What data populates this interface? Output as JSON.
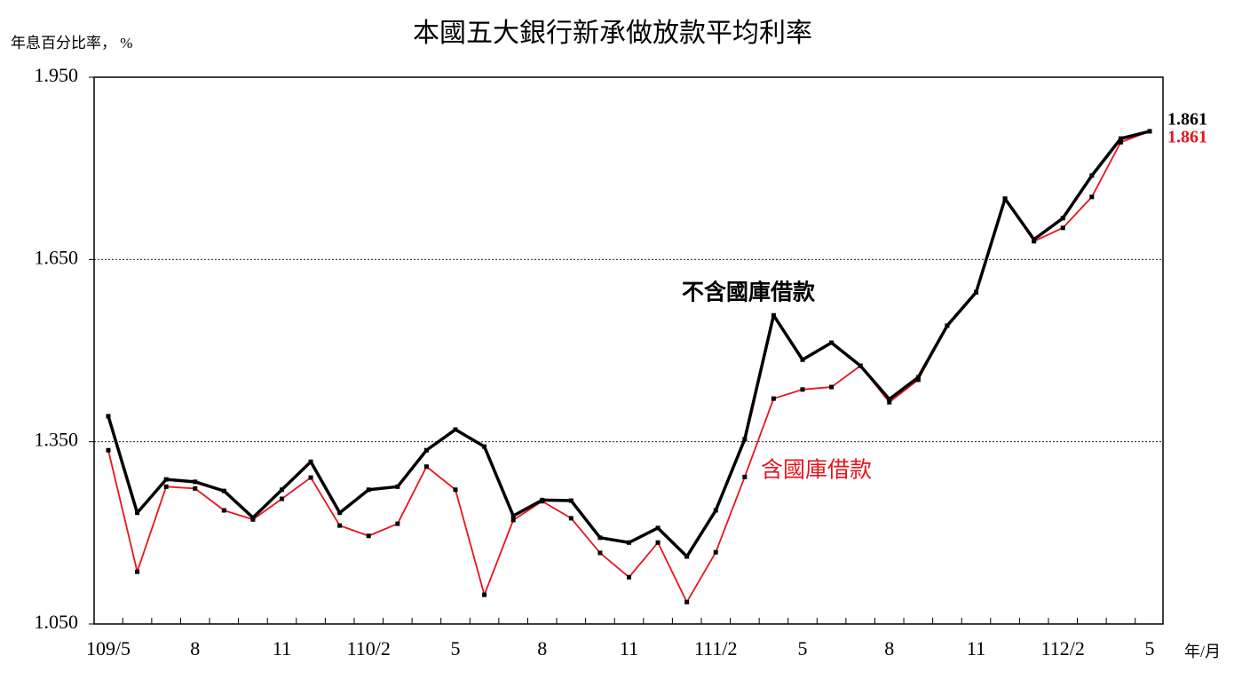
{
  "chart_data": {
    "type": "line",
    "title": "本國五大銀行新承做放款平均利率",
    "y_label": "年息百分比率， %",
    "x_label": "年/月",
    "categories": [
      "109/5",
      null,
      null,
      "8",
      null,
      null,
      "11",
      null,
      null,
      "110/2",
      null,
      null,
      "5",
      null,
      null,
      "8",
      null,
      null,
      "11",
      null,
      null,
      "111/2",
      null,
      null,
      "5",
      null,
      null,
      "8",
      null,
      null,
      "11",
      null,
      null,
      "112/2",
      null,
      null,
      "5"
    ],
    "series": [
      {
        "name": "不含國庫借款",
        "color": "#000000",
        "values": [
          1.392,
          1.233,
          1.288,
          1.284,
          1.269,
          1.225,
          1.271,
          1.317,
          1.233,
          1.271,
          1.276,
          1.336,
          1.37,
          1.342,
          1.228,
          1.254,
          1.253,
          1.192,
          1.184,
          1.208,
          1.161,
          1.237,
          1.354,
          1.558,
          1.485,
          1.513,
          1.475,
          1.42,
          1.456,
          1.541,
          1.596,
          1.75,
          1.683,
          1.718,
          1.788,
          1.849,
          1.861
        ]
      },
      {
        "name": "含國庫借款",
        "color": "#e8141e",
        "values": [
          1.336,
          1.136,
          1.276,
          1.273,
          1.237,
          1.222,
          1.256,
          1.291,
          1.212,
          1.195,
          1.215,
          1.309,
          1.271,
          1.098,
          1.221,
          1.252,
          1.224,
          1.167,
          1.127,
          1.184,
          1.086,
          1.168,
          1.292,
          1.421,
          1.436,
          1.44,
          1.475,
          1.415,
          1.452,
          1.541,
          1.596,
          1.75,
          1.68,
          1.702,
          1.753,
          1.843,
          1.861
        ]
      }
    ],
    "ylim": [
      1.05,
      1.95
    ],
    "yticks": [
      {
        "value": 1.05,
        "label": "1.050"
      },
      {
        "value": 1.35,
        "label": "1.350"
      },
      {
        "value": 1.65,
        "label": "1.650"
      },
      {
        "value": 1.95,
        "label": "1.950"
      }
    ],
    "grid": true
  }
}
